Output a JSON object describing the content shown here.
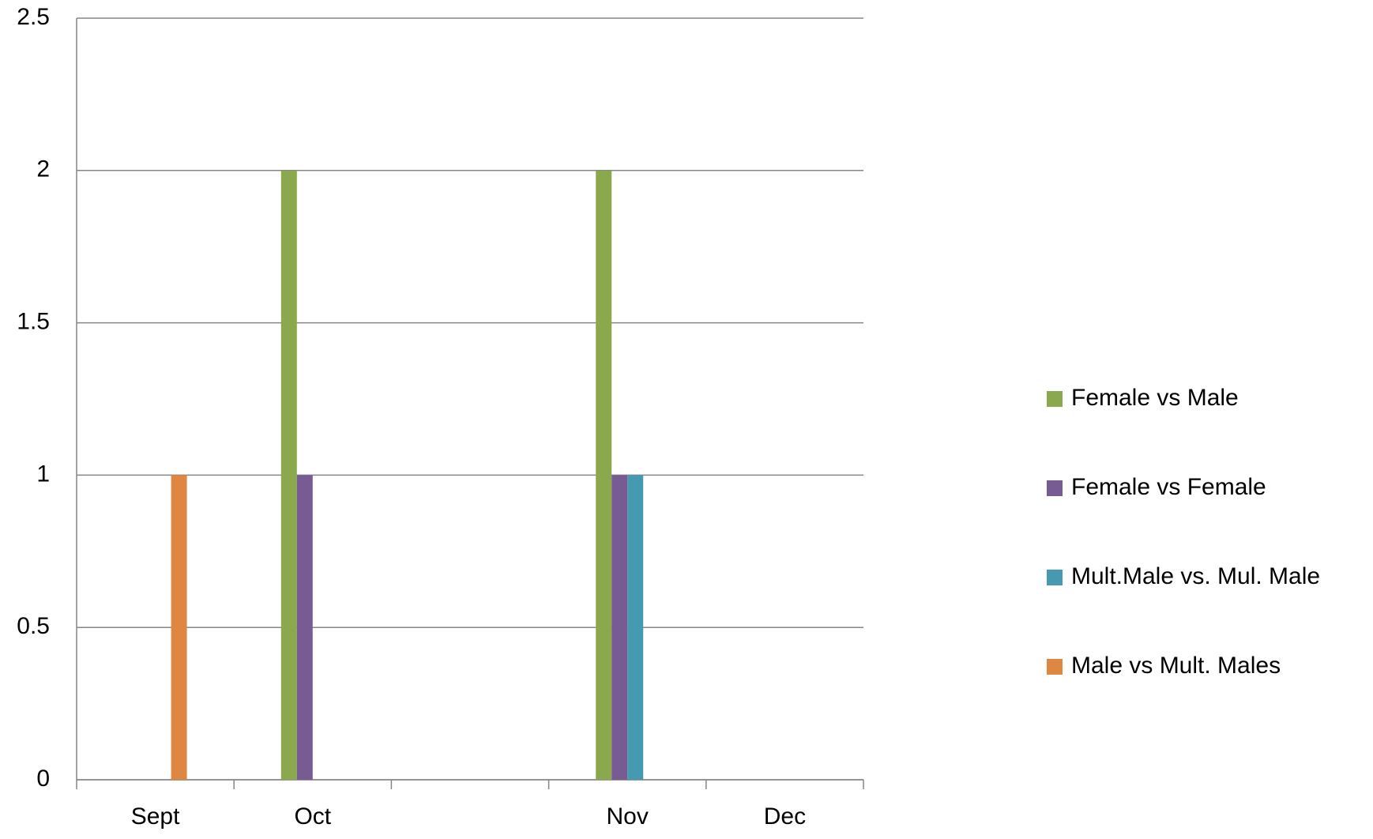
{
  "chart_data": {
    "type": "bar",
    "categories": [
      "Sept",
      "Oct",
      null,
      "Nov",
      "Dec"
    ],
    "series": [
      {
        "name": "Female vs Male",
        "color": "#8aa94f",
        "values": [
          0,
          2,
          null,
          2,
          0
        ]
      },
      {
        "name": "Female vs Female",
        "color": "#775c93",
        "values": [
          0,
          1,
          null,
          1,
          0
        ]
      },
      {
        "name": "Mult.Male vs. Mul. Male",
        "color": "#4599b0",
        "values": [
          0,
          0,
          null,
          1,
          0
        ]
      },
      {
        "name": "Male vs Mult. Males",
        "color": "#dd8742",
        "values": [
          1,
          0,
          null,
          0,
          0
        ]
      }
    ],
    "ylim": [
      0,
      2.5
    ],
    "yticks": [
      0,
      0.5,
      1,
      1.5,
      2,
      2.5
    ],
    "grid": true,
    "legend": "right"
  }
}
